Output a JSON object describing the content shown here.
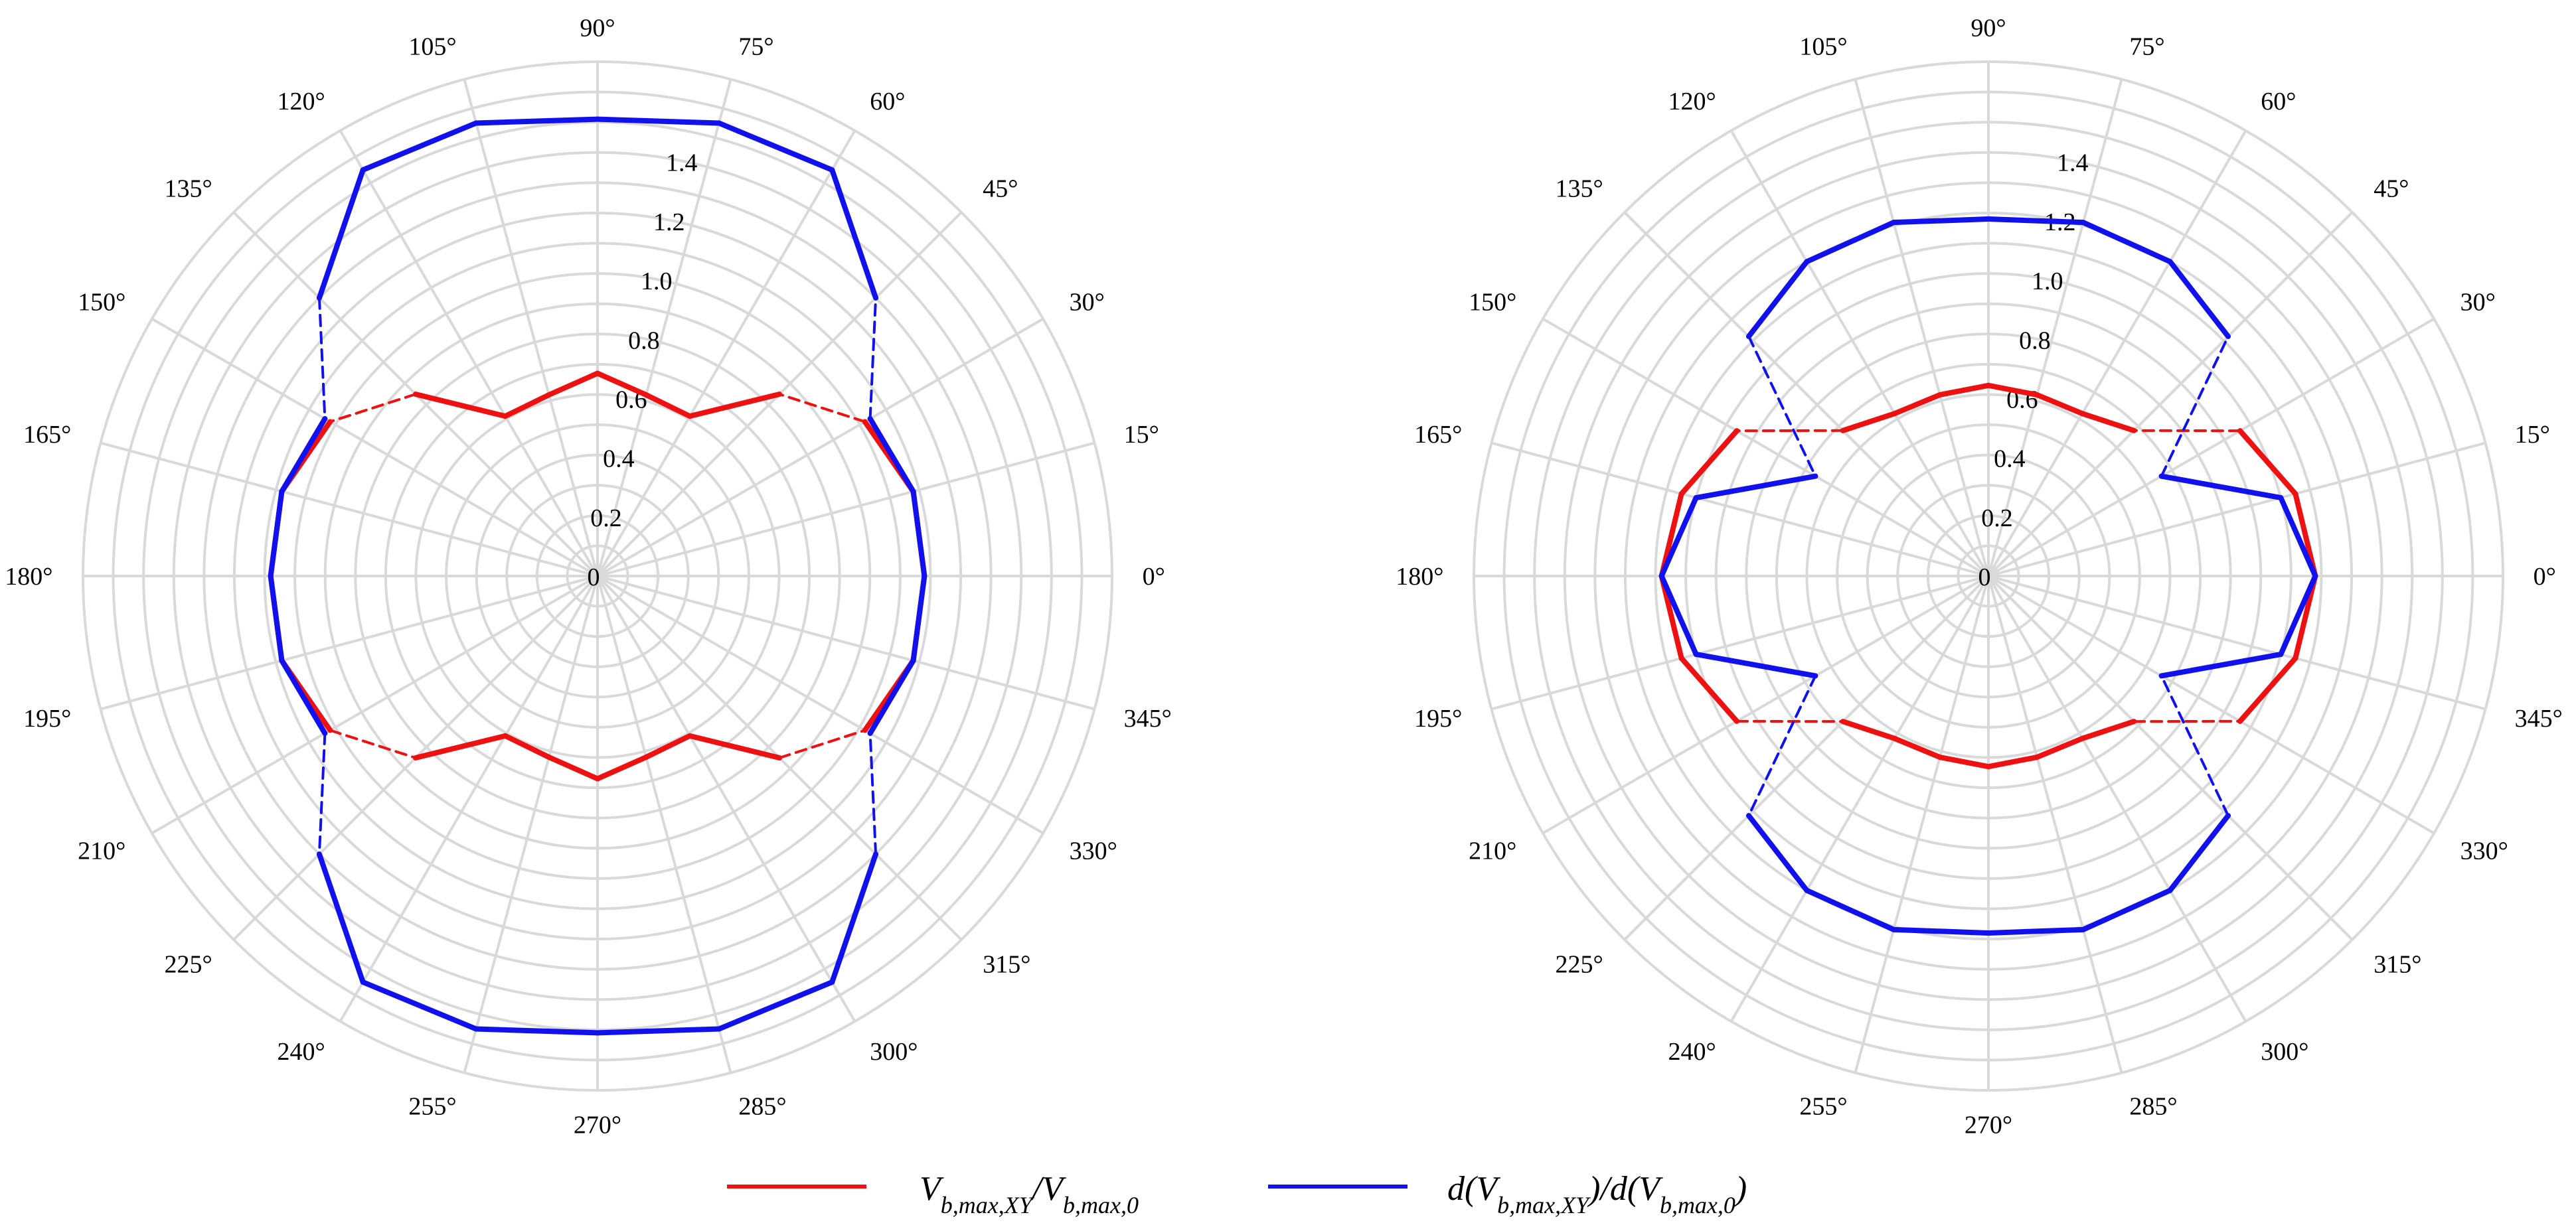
{
  "chart_data": [
    {
      "type": "polar-line",
      "theta_deg": [
        0,
        15,
        30,
        45,
        60,
        75,
        90,
        105,
        120,
        135,
        150,
        165,
        180,
        195,
        210,
        225,
        240,
        255,
        270,
        285,
        300,
        315,
        330,
        345
      ],
      "theta_labels": [
        "0°",
        "15°",
        "30°",
        "45°",
        "60°",
        "75°",
        "90°",
        "105°",
        "120°",
        "135°",
        "150°",
        "165°",
        "180°",
        "195°",
        "210°",
        "225°",
        "240°",
        "255°",
        "270°",
        "285°",
        "300°",
        "315°",
        "330°",
        "345°"
      ],
      "r_ticks": [
        "0",
        "0.2",
        "0.4",
        "0.6",
        "0.8",
        "1.0",
        "1.2",
        "1.4"
      ],
      "r_tick_values": [
        0,
        0.2,
        0.4,
        0.6,
        0.8,
        1.0,
        1.2,
        1.4
      ],
      "r_max": 1.7,
      "grid": true,
      "series": [
        {
          "color": "#ee1111",
          "values": [
            1.08,
            1.08,
            1.02,
            0.85,
            0.61,
            0.62,
            0.67,
            0.62,
            0.61,
            0.85,
            1.02,
            1.08,
            1.08,
            1.08,
            1.02,
            0.85,
            0.61,
            0.62,
            0.67,
            0.62,
            0.61,
            0.85,
            1.02,
            1.08
          ],
          "dashed_segments": [
            [
              30,
              45
            ],
            [
              135,
              150
            ],
            [
              210,
              225
            ],
            [
              315,
              330
            ]
          ]
        },
        {
          "color": "#1111ee",
          "values": [
            1.08,
            1.08,
            1.04,
            1.3,
            1.55,
            1.55,
            1.51,
            1.55,
            1.55,
            1.3,
            1.04,
            1.08,
            1.08,
            1.08,
            1.04,
            1.3,
            1.55,
            1.55,
            1.51,
            1.55,
            1.55,
            1.3,
            1.04,
            1.08
          ],
          "dashed_segments": [
            [
              30,
              45
            ],
            [
              135,
              150
            ],
            [
              210,
              225
            ],
            [
              315,
              330
            ]
          ]
        }
      ]
    },
    {
      "type": "polar-line",
      "theta_deg": [
        0,
        15,
        30,
        45,
        60,
        75,
        90,
        105,
        120,
        135,
        150,
        165,
        180,
        195,
        210,
        225,
        240,
        255,
        270,
        285,
        300,
        315,
        330,
        345
      ],
      "theta_labels": [
        "0°",
        "15°",
        "30°",
        "45°",
        "60°",
        "75°",
        "90°",
        "105°",
        "120°",
        "135°",
        "150°",
        "165°",
        "180°",
        "195°",
        "210°",
        "225°",
        "240°",
        "255°",
        "270°",
        "285°",
        "300°",
        "315°",
        "330°",
        "345°"
      ],
      "r_ticks": [
        "0",
        "0.2",
        "0.4",
        "0.6",
        "0.8",
        "1.0",
        "1.2",
        "1.4"
      ],
      "r_tick_values": [
        0,
        0.2,
        0.4,
        0.6,
        0.8,
        1.0,
        1.2,
        1.4
      ],
      "r_max": 1.7,
      "grid": true,
      "series": [
        {
          "color": "#ee1111",
          "values": [
            1.08,
            1.05,
            0.96,
            0.68,
            0.62,
            0.62,
            0.63,
            0.62,
            0.62,
            0.68,
            0.96,
            1.05,
            1.08,
            1.05,
            0.96,
            0.68,
            0.62,
            0.62,
            0.63,
            0.62,
            0.62,
            0.68,
            0.96,
            1.05
          ],
          "dashed_segments": [
            [
              30,
              45
            ],
            [
              135,
              150
            ],
            [
              210,
              225
            ],
            [
              315,
              330
            ]
          ]
        },
        {
          "color": "#1111ee",
          "values": [
            1.08,
            1.0,
            0.66,
            1.12,
            1.2,
            1.21,
            1.18,
            1.21,
            1.2,
            1.12,
            0.66,
            1.0,
            1.08,
            1.0,
            0.66,
            1.12,
            1.2,
            1.21,
            1.18,
            1.21,
            1.2,
            1.12,
            0.66,
            1.0
          ],
          "dashed_segments": [
            [
              30,
              45
            ],
            [
              135,
              150
            ],
            [
              210,
              225
            ],
            [
              315,
              330
            ]
          ]
        }
      ]
    }
  ],
  "legend": {
    "items": [
      {
        "color": "#ee1111",
        "label_parts": [
          "V",
          "b,max,XY",
          "/V",
          "b,max,0"
        ]
      },
      {
        "color": "#1111ee",
        "label_parts": [
          "d(V",
          "b,max,XY",
          ")/d(V",
          "b,max,0",
          ")"
        ]
      }
    ]
  }
}
